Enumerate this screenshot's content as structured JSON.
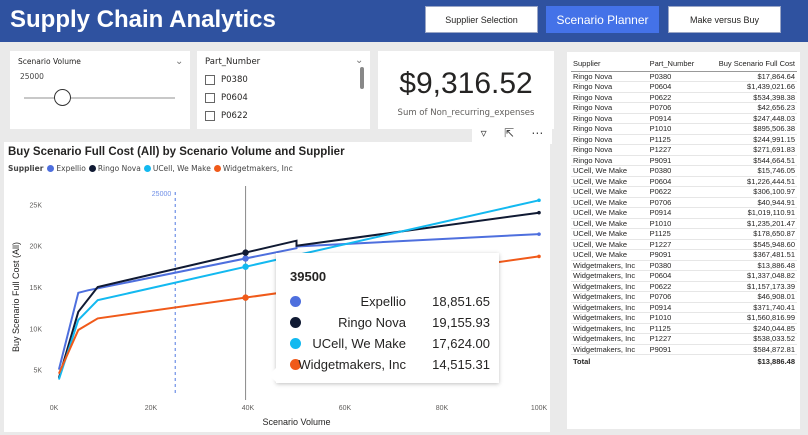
{
  "header": {
    "title": "Supply Chain Analytics",
    "buttons": [
      {
        "label": "Supplier Selection",
        "active": false
      },
      {
        "label": "Scenario Planner",
        "active": true
      },
      {
        "label": "Make versus Buy",
        "active": false
      }
    ]
  },
  "slicer_volume": {
    "title": "Scenario Volume",
    "value": "25000",
    "fraction": 0.25
  },
  "slicer_part": {
    "title": "Part_Number",
    "items": [
      "P0380",
      "P0604",
      "P0622"
    ]
  },
  "kpi": {
    "value": "$9,316.52",
    "label": "Sum of Non_recurring_expenses"
  },
  "chart_data": {
    "type": "line",
    "title": "Buy Scenario Full Cost (All) by Scenario Volume and Supplier",
    "legend_title": "Supplier",
    "xlabel": "Scenario Volume",
    "ylabel": "Buy Scenario Full Cost (All)",
    "xlim": [
      0,
      100000
    ],
    "ylim": [
      3500,
      26500
    ],
    "x_ticks": [
      {
        "v": 0,
        "label": "0K"
      },
      {
        "v": 20000,
        "label": "20K"
      },
      {
        "v": 40000,
        "label": "40K"
      },
      {
        "v": 60000,
        "label": "60K"
      },
      {
        "v": 80000,
        "label": "80K"
      },
      {
        "v": 100000,
        "label": "100K"
      }
    ],
    "y_ticks": [
      {
        "v": 5000,
        "label": "5K"
      },
      {
        "v": 10000,
        "label": "10K"
      },
      {
        "v": 15000,
        "label": "15K"
      },
      {
        "v": 20000,
        "label": "20K"
      },
      {
        "v": 25000,
        "label": "25K"
      }
    ],
    "reference_line": {
      "x": 25000,
      "label": "25000"
    },
    "hover_x": 39500,
    "grid": false,
    "legend_position": "top-left",
    "series": [
      {
        "name": "Expellio",
        "color": "#4e6fde",
        "points": [
          [
            1000,
            5000
          ],
          [
            5000,
            14300
          ],
          [
            7000,
            14600
          ],
          [
            50000,
            19700
          ],
          [
            50001,
            19900
          ],
          [
            100000,
            21400
          ]
        ]
      },
      {
        "name": "Ringo Nova",
        "color": "#101a33",
        "points": [
          [
            1000,
            4000
          ],
          [
            5000,
            12000
          ],
          [
            9000,
            15000
          ],
          [
            50000,
            20600
          ],
          [
            50001,
            20000
          ],
          [
            100000,
            24000
          ]
        ]
      },
      {
        "name": "UCell, We Make",
        "color": "#13b9f0",
        "points": [
          [
            1000,
            3800
          ],
          [
            5000,
            11000
          ],
          [
            9000,
            13400
          ],
          [
            100000,
            25500
          ]
        ]
      },
      {
        "name": "Widgetmakers, Inc",
        "color": "#f05a1a",
        "points": [
          [
            1000,
            4500
          ],
          [
            5000,
            9800
          ],
          [
            9000,
            11200
          ],
          [
            100000,
            18700
          ]
        ]
      }
    ]
  },
  "tooltip": {
    "heading": "39500",
    "rows": [
      {
        "name": "Expellio",
        "value": "18,851.65",
        "color": "#4e6fde"
      },
      {
        "name": "Ringo Nova",
        "value": "19,155.93",
        "color": "#101a33"
      },
      {
        "name": "UCell, We Make",
        "value": "17,624.00",
        "color": "#13b9f0"
      },
      {
        "name": "Widgetmakers, Inc",
        "value": "14,515.31",
        "color": "#f05a1a"
      }
    ]
  },
  "table": {
    "headers": [
      "Supplier",
      "Part_Number",
      "Buy Scenario Full Cost"
    ],
    "rows": [
      [
        "Ringo Nova",
        "P0380",
        "$17,864.64"
      ],
      [
        "Ringo Nova",
        "P0604",
        "$1,439,021.66"
      ],
      [
        "Ringo Nova",
        "P0622",
        "$534,398.38"
      ],
      [
        "Ringo Nova",
        "P0706",
        "$42,656.23"
      ],
      [
        "Ringo Nova",
        "P0914",
        "$247,448.03"
      ],
      [
        "Ringo Nova",
        "P1010",
        "$895,506.38"
      ],
      [
        "Ringo Nova",
        "P1125",
        "$244,991.15"
      ],
      [
        "Ringo Nova",
        "P1227",
        "$271,691.83"
      ],
      [
        "Ringo Nova",
        "P9091",
        "$544,664.51"
      ],
      [
        "UCell, We Make",
        "P0380",
        "$15,746.05"
      ],
      [
        "UCell, We Make",
        "P0604",
        "$1,226,444.51"
      ],
      [
        "UCell, We Make",
        "P0622",
        "$306,100.97"
      ],
      [
        "UCell, We Make",
        "P0706",
        "$40,944.91"
      ],
      [
        "UCell, We Make",
        "P0914",
        "$1,019,110.91"
      ],
      [
        "UCell, We Make",
        "P1010",
        "$1,235,201.47"
      ],
      [
        "UCell, We Make",
        "P1125",
        "$178,650.87"
      ],
      [
        "UCell, We Make",
        "P1227",
        "$545,948.60"
      ],
      [
        "UCell, We Make",
        "P9091",
        "$367,481.51"
      ],
      [
        "Widgetmakers, Inc",
        "P0380",
        "$13,886.48"
      ],
      [
        "Widgetmakers, Inc",
        "P0604",
        "$1,337,048.82"
      ],
      [
        "Widgetmakers, Inc",
        "P0622",
        "$1,157,173.39"
      ],
      [
        "Widgetmakers, Inc",
        "P0706",
        "$46,908.01"
      ],
      [
        "Widgetmakers, Inc",
        "P0914",
        "$371,740.41"
      ],
      [
        "Widgetmakers, Inc",
        "P1010",
        "$1,560,816.99"
      ],
      [
        "Widgetmakers, Inc",
        "P1125",
        "$240,044.85"
      ],
      [
        "Widgetmakers, Inc",
        "P1227",
        "$538,033.52"
      ],
      [
        "Widgetmakers, Inc",
        "P9091",
        "$584,872.81"
      ]
    ],
    "total": {
      "label": "Total",
      "value": "$13,886.48"
    }
  }
}
